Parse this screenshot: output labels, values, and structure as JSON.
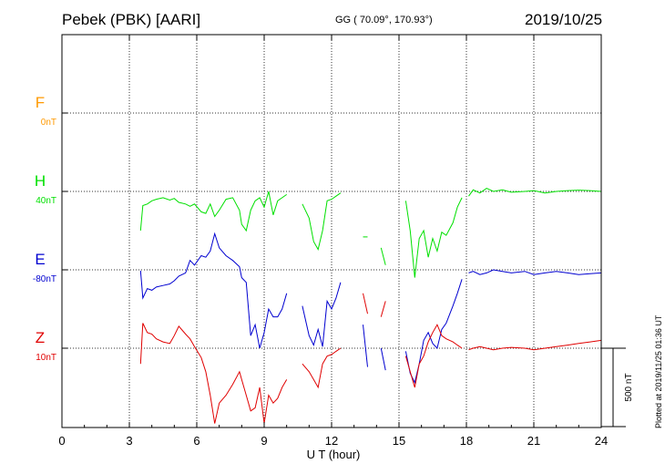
{
  "header": {
    "station": "Pebek (PBK)  [AARI]",
    "coords": "GG ( 70.09°, 170.93°)",
    "date": "2019/10/25"
  },
  "footer_note": "Plotted at 2019/11/25 01:36 UT",
  "scale_bar": {
    "label": "500 nT",
    "nT": 500
  },
  "colors": {
    "F": "#ff9900",
    "H": "#00e000",
    "E": "#0000d0",
    "Z": "#e00000"
  },
  "chart_data": {
    "type": "line",
    "xlabel": "U T (hour)",
    "xlim": [
      0,
      24
    ],
    "xticks": [
      "0",
      "3",
      "6",
      "9",
      "12",
      "15",
      "18",
      "21",
      "24"
    ],
    "grid": true,
    "series": [
      {
        "name": "F",
        "offset": "0nT",
        "color": "#ff9900",
        "values": []
      },
      {
        "name": "H",
        "offset": "40nT",
        "color": "#00e000",
        "segments": [
          [
            [
              3.5,
              -250
            ],
            [
              3.6,
              -90
            ],
            [
              3.8,
              -80
            ],
            [
              4.0,
              -60
            ],
            [
              4.2,
              -50
            ],
            [
              4.5,
              -40
            ],
            [
              4.8,
              -55
            ],
            [
              5.0,
              -45
            ],
            [
              5.2,
              -70
            ],
            [
              5.5,
              -80
            ],
            [
              5.7,
              -95
            ],
            [
              5.9,
              -80
            ],
            [
              6.2,
              -130
            ],
            [
              6.4,
              -140
            ],
            [
              6.6,
              -80
            ],
            [
              6.8,
              -160
            ],
            [
              7.0,
              -120
            ],
            [
              7.3,
              -50
            ],
            [
              7.6,
              -40
            ],
            [
              7.9,
              -120
            ],
            [
              8.0,
              -210
            ],
            [
              8.2,
              -250
            ],
            [
              8.4,
              -120
            ],
            [
              8.6,
              -60
            ],
            [
              8.8,
              -40
            ],
            [
              9.0,
              -100
            ],
            [
              9.2,
              0
            ],
            [
              9.4,
              -150
            ],
            [
              9.6,
              -60
            ],
            [
              9.8,
              -40
            ],
            [
              10.0,
              -20
            ]
          ],
          [
            [
              10.7,
              -80
            ],
            [
              11.0,
              -170
            ],
            [
              11.2,
              -320
            ],
            [
              11.4,
              -370
            ],
            [
              11.6,
              -250
            ],
            [
              11.8,
              -60
            ],
            [
              12.0,
              -50
            ],
            [
              12.2,
              -30
            ],
            [
              12.4,
              -10
            ]
          ],
          [
            [
              13.4,
              -290
            ],
            [
              13.6,
              -290
            ]
          ],
          [
            [
              14.2,
              -360
            ],
            [
              14.4,
              -470
            ]
          ],
          [
            [
              15.3,
              -60
            ],
            [
              15.5,
              -250
            ],
            [
              15.7,
              -550
            ],
            [
              15.9,
              -300
            ],
            [
              16.1,
              -250
            ],
            [
              16.3,
              -420
            ],
            [
              16.5,
              -300
            ],
            [
              16.7,
              -380
            ],
            [
              16.9,
              -260
            ],
            [
              17.1,
              -280
            ],
            [
              17.4,
              -200
            ],
            [
              17.6,
              -100
            ],
            [
              17.8,
              -40
            ]
          ],
          [
            [
              18.1,
              -30
            ],
            [
              18.3,
              10
            ],
            [
              18.6,
              -10
            ],
            [
              18.9,
              20
            ],
            [
              19.2,
              0
            ],
            [
              19.6,
              10
            ],
            [
              20.0,
              -5
            ],
            [
              20.6,
              0
            ],
            [
              21.0,
              5
            ],
            [
              21.5,
              -10
            ],
            [
              22.0,
              0
            ],
            [
              22.5,
              5
            ],
            [
              23.0,
              8
            ],
            [
              23.5,
              5
            ],
            [
              24.0,
              0
            ]
          ]
        ]
      },
      {
        "name": "E",
        "offset": "-80nT",
        "color": "#0000d0",
        "segments": [
          [
            [
              3.5,
              -5
            ],
            [
              3.6,
              -180
            ],
            [
              3.8,
              -120
            ],
            [
              4.0,
              -130
            ],
            [
              4.2,
              -110
            ],
            [
              4.5,
              -100
            ],
            [
              4.8,
              -90
            ],
            [
              5.0,
              -70
            ],
            [
              5.2,
              -40
            ],
            [
              5.5,
              -20
            ],
            [
              5.7,
              60
            ],
            [
              5.9,
              30
            ],
            [
              6.2,
              90
            ],
            [
              6.4,
              80
            ],
            [
              6.6,
              120
            ],
            [
              6.8,
              230
            ],
            [
              7.0,
              140
            ],
            [
              7.3,
              90
            ],
            [
              7.6,
              60
            ],
            [
              7.9,
              20
            ],
            [
              8.0,
              -50
            ],
            [
              8.2,
              -80
            ],
            [
              8.4,
              -420
            ],
            [
              8.6,
              -350
            ],
            [
              8.8,
              -500
            ],
            [
              9.0,
              -400
            ],
            [
              9.2,
              -250
            ],
            [
              9.4,
              -300
            ],
            [
              9.6,
              -300
            ],
            [
              9.8,
              -250
            ],
            [
              10.0,
              -150
            ]
          ],
          [
            [
              10.7,
              -230
            ],
            [
              11.0,
              -420
            ],
            [
              11.2,
              -480
            ],
            [
              11.4,
              -380
            ],
            [
              11.6,
              -490
            ],
            [
              11.8,
              -200
            ],
            [
              12.0,
              -250
            ],
            [
              12.2,
              -180
            ],
            [
              12.4,
              -80
            ]
          ],
          [
            [
              13.4,
              -350
            ],
            [
              13.6,
              -620
            ]
          ],
          [
            [
              14.2,
              -500
            ],
            [
              14.4,
              -640
            ]
          ],
          [
            [
              15.3,
              -520
            ],
            [
              15.5,
              -660
            ],
            [
              15.7,
              -720
            ],
            [
              15.9,
              -600
            ],
            [
              16.1,
              -450
            ],
            [
              16.3,
              -400
            ],
            [
              16.5,
              -470
            ],
            [
              16.7,
              -500
            ],
            [
              16.9,
              -380
            ],
            [
              17.1,
              -340
            ],
            [
              17.4,
              -230
            ],
            [
              17.6,
              -150
            ],
            [
              17.8,
              -60
            ]
          ],
          [
            [
              18.1,
              -20
            ],
            [
              18.3,
              -10
            ],
            [
              18.6,
              -30
            ],
            [
              18.9,
              -20
            ],
            [
              19.2,
              0
            ],
            [
              19.6,
              -10
            ],
            [
              20.0,
              -20
            ],
            [
              20.6,
              -10
            ],
            [
              21.0,
              -30
            ],
            [
              21.5,
              -20
            ],
            [
              22.0,
              -10
            ],
            [
              22.5,
              -20
            ],
            [
              23.0,
              -30
            ],
            [
              23.5,
              -25
            ],
            [
              24.0,
              -20
            ]
          ]
        ]
      },
      {
        "name": "Z",
        "offset": "10nT",
        "color": "#e00000",
        "segments": [
          [
            [
              3.5,
              -100
            ],
            [
              3.6,
              160
            ],
            [
              3.8,
              100
            ],
            [
              4.0,
              90
            ],
            [
              4.2,
              60
            ],
            [
              4.5,
              40
            ],
            [
              4.8,
              30
            ],
            [
              5.0,
              80
            ],
            [
              5.2,
              140
            ],
            [
              5.5,
              90
            ],
            [
              5.7,
              60
            ],
            [
              5.9,
              10
            ],
            [
              6.2,
              -60
            ],
            [
              6.4,
              -150
            ],
            [
              6.6,
              -300
            ],
            [
              6.8,
              -480
            ],
            [
              7.0,
              -350
            ],
            [
              7.3,
              -300
            ],
            [
              7.6,
              -230
            ],
            [
              7.9,
              -150
            ],
            [
              8.0,
              -200
            ],
            [
              8.2,
              -300
            ],
            [
              8.4,
              -400
            ],
            [
              8.6,
              -380
            ],
            [
              8.8,
              -250
            ],
            [
              9.0,
              -480
            ],
            [
              9.2,
              -300
            ],
            [
              9.4,
              -350
            ],
            [
              9.6,
              -320
            ],
            [
              9.8,
              -250
            ],
            [
              10.0,
              -200
            ]
          ],
          [
            [
              10.7,
              -100
            ],
            [
              11.0,
              -150
            ],
            [
              11.2,
              -200
            ],
            [
              11.4,
              -250
            ],
            [
              11.6,
              -100
            ],
            [
              11.8,
              -50
            ],
            [
              12.0,
              -40
            ],
            [
              12.2,
              -20
            ],
            [
              12.4,
              0
            ]
          ],
          [
            [
              13.4,
              350
            ],
            [
              13.6,
              220
            ]
          ],
          [
            [
              14.2,
              200
            ],
            [
              14.4,
              300
            ]
          ],
          [
            [
              15.3,
              -50
            ],
            [
              15.5,
              -150
            ],
            [
              15.7,
              -250
            ],
            [
              15.9,
              -100
            ],
            [
              16.1,
              -50
            ],
            [
              16.3,
              40
            ],
            [
              16.5,
              100
            ],
            [
              16.7,
              150
            ],
            [
              16.9,
              80
            ],
            [
              17.1,
              60
            ],
            [
              17.4,
              40
            ],
            [
              17.6,
              20
            ],
            [
              17.8,
              0
            ]
          ],
          [
            [
              18.1,
              -10
            ],
            [
              18.3,
              0
            ],
            [
              18.6,
              10
            ],
            [
              18.9,
              0
            ],
            [
              19.2,
              -10
            ],
            [
              19.6,
              0
            ],
            [
              20.0,
              5
            ],
            [
              20.6,
              0
            ],
            [
              21.0,
              -10
            ],
            [
              21.5,
              0
            ],
            [
              22.0,
              10
            ],
            [
              22.5,
              20
            ],
            [
              23.0,
              30
            ],
            [
              23.5,
              40
            ],
            [
              24.0,
              50
            ]
          ]
        ]
      }
    ]
  }
}
